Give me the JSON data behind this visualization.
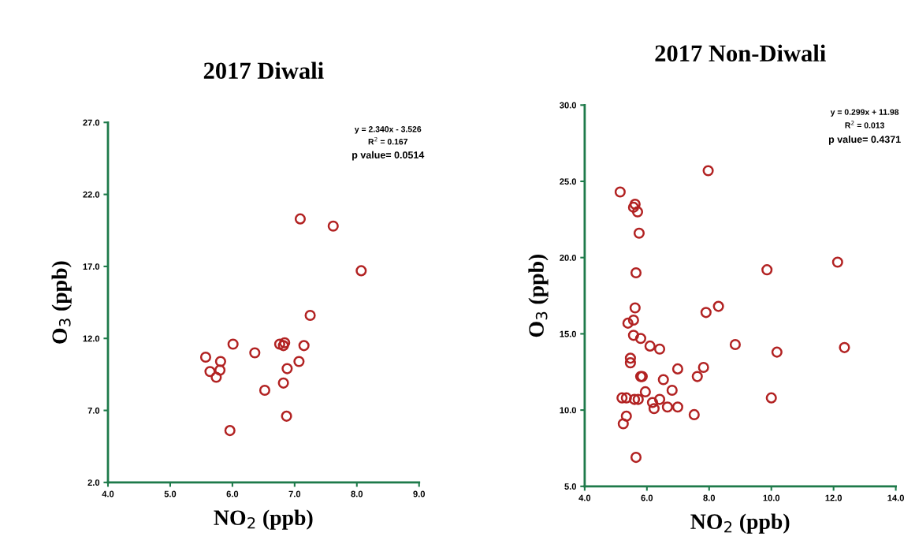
{
  "chart_data": [
    {
      "type": "scatter",
      "title": "2017 Diwali",
      "xlabel": "NO$_{2}$ (ppb)",
      "ylabel": "O$_{3}$ (ppb)",
      "annotations": [
        "y = 2.340x - 3.526",
        "R$^{2}$ = 0.167",
        "p value= 0.0514"
      ],
      "marker": "circle",
      "grid": false,
      "legend": false,
      "xlim": [
        4,
        9
      ],
      "xticks": [
        {
          "value": 4,
          "label": "4.0"
        },
        {
          "value": 5,
          "label": "5.0"
        },
        {
          "value": 6,
          "label": "6.0"
        },
        {
          "value": 7,
          "label": "7.0"
        },
        {
          "value": 8,
          "label": "8.0"
        },
        {
          "value": 9,
          "label": "9.0"
        }
      ],
      "ylim": [
        2,
        27
      ],
      "yticks": [
        {
          "value": 2,
          "label": "2.0"
        },
        {
          "value": 7,
          "label": "7.0"
        },
        {
          "value": 12,
          "label": "12.0"
        },
        {
          "value": 17,
          "label": "17.0"
        },
        {
          "value": 22,
          "label": "22.0"
        },
        {
          "value": 27,
          "label": "27.0"
        }
      ],
      "series": [
        {
          "color": "#b22222",
          "x": [
            7.09,
            7.62,
            8.07,
            7.25,
            6.01,
            6.76,
            6.82,
            6.84,
            7.15,
            6.36,
            5.57,
            5.81,
            7.07,
            6.88,
            5.64,
            5.8,
            5.74,
            6.82,
            6.52,
            6.87,
            5.96
          ],
          "values": [
            20.3,
            19.8,
            16.7,
            13.6,
            11.6,
            11.6,
            11.5,
            11.7,
            11.5,
            11.0,
            10.7,
            10.4,
            10.4,
            9.9,
            9.7,
            9.8,
            9.3,
            8.9,
            8.4,
            6.6,
            5.6
          ]
        }
      ]
    },
    {
      "type": "scatter",
      "title": "2017 Non-Diwali",
      "xlabel": "NO$_{2}$ (ppb)",
      "ylabel": "O$_{3}$ (ppb)",
      "annotations": [
        "y = 0.299x + 11.98",
        "R$^{2}$ = 0.013",
        "p value= 0.4371"
      ],
      "marker": "circle",
      "grid": false,
      "legend": false,
      "xlim": [
        4,
        14
      ],
      "xticks": [
        {
          "value": 4,
          "label": "4.0"
        },
        {
          "value": 6,
          "label": "6.0"
        },
        {
          "value": 8,
          "label": "8.0"
        },
        {
          "value": 10,
          "label": "10.0"
        },
        {
          "value": 12,
          "label": "12.0"
        },
        {
          "value": 14,
          "label": "14.0"
        }
      ],
      "ylim": [
        5,
        30
      ],
      "yticks": [
        {
          "value": 5,
          "label": "5.0"
        },
        {
          "value": 10,
          "label": "10.0"
        },
        {
          "value": 15,
          "label": "15.0"
        },
        {
          "value": 20,
          "label": "20.0"
        },
        {
          "value": 25,
          "label": "25.0"
        },
        {
          "value": 30,
          "label": "30.0"
        }
      ],
      "series": [
        {
          "color": "#b22222",
          "x": [
            7.97,
            5.14,
            5.62,
            5.57,
            5.7,
            5.75,
            5.65,
            5.62,
            7.9,
            8.3,
            5.39,
            5.57,
            5.57,
            5.8,
            6.1,
            6.41,
            8.84,
            10.18,
            5.47,
            5.47,
            5.8,
            5.85,
            6.99,
            7.82,
            7.62,
            6.53,
            5.95,
            6.81,
            5.2,
            5.34,
            5.6,
            5.72,
            6.18,
            6.41,
            6.23,
            6.66,
            6.99,
            7.52,
            10.0,
            5.34,
            5.24,
            5.65,
            9.86,
            12.13,
            12.35
          ],
          "values": [
            25.7,
            24.3,
            23.5,
            23.3,
            23.0,
            21.6,
            19.0,
            16.7,
            16.4,
            16.8,
            15.7,
            15.9,
            14.9,
            14.7,
            14.2,
            14.0,
            14.3,
            13.8,
            13.1,
            13.4,
            12.2,
            12.2,
            12.7,
            12.8,
            12.2,
            12.0,
            11.2,
            11.3,
            10.8,
            10.8,
            10.7,
            10.7,
            10.5,
            10.7,
            10.1,
            10.2,
            10.2,
            9.7,
            10.8,
            9.6,
            9.1,
            6.9,
            19.2,
            19.7,
            14.1
          ]
        }
      ]
    }
  ]
}
